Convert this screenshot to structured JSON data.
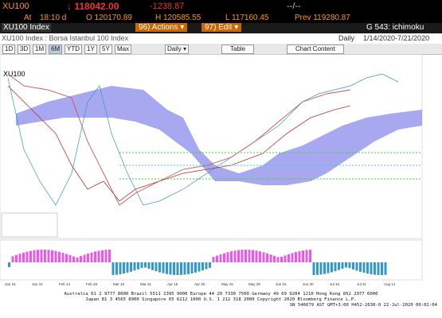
{
  "header": {
    "ticker": "XU100",
    "last": "↓ 118042.00",
    "change": "-1238.87",
    "time_placeholder": "--/--"
  },
  "quote": {
    "at": "At",
    "time": "18:10 d",
    "open": "O 120170.89",
    "high": "H 120585.55",
    "low": "L 117160.45",
    "prev": "Prev 119280.87"
  },
  "menu": {
    "security": "XU100 Index",
    "actions": "96) Actions ▾",
    "edit": "97) Edit ▾",
    "function": "G 543: ichimoku"
  },
  "info": {
    "description": "XU100 Index : Borsa Istanbul 100 Index",
    "period": "Daily",
    "range": "1/14/2020-7/21/2020"
  },
  "toolbar": {
    "buttons": [
      "1D",
      "3D",
      "1M",
      "6M",
      "YTD",
      "1Y",
      "5Y",
      "Max"
    ],
    "frequency": "Daily ▾",
    "table": "Table",
    "chart_content": "Chart Content"
  },
  "chart": {
    "label": "XU100",
    "x_labels": [
      "Jan 15",
      "Jan 31",
      "Feb 14",
      "Feb 28",
      "Mar 16",
      "Mar 31",
      "Apr 15",
      "Apr 30",
      "May 15",
      "May 29",
      "Jun 15",
      "Jun 30",
      "Jul 16",
      "Jul 31",
      "Aug 14"
    ]
  },
  "footer": {
    "line1": "Australia 61 2 9777 8600 Brazil 5511 2395 9000 Europe 44 20 7330 7500 Germany 49 69 9204 1210 Hong Kong 852 2977 6000",
    "line2": "Japan 81 3 4565 8900     Singapore 65 6212 1000     U.S. 1 212 318 2000     Copyright 2020 Bloomberg Finance L.P.",
    "line3": "SN 546679 AST  GMT+3:00 H452-2630-0 22-Jul-2020 00:02:04"
  }
}
